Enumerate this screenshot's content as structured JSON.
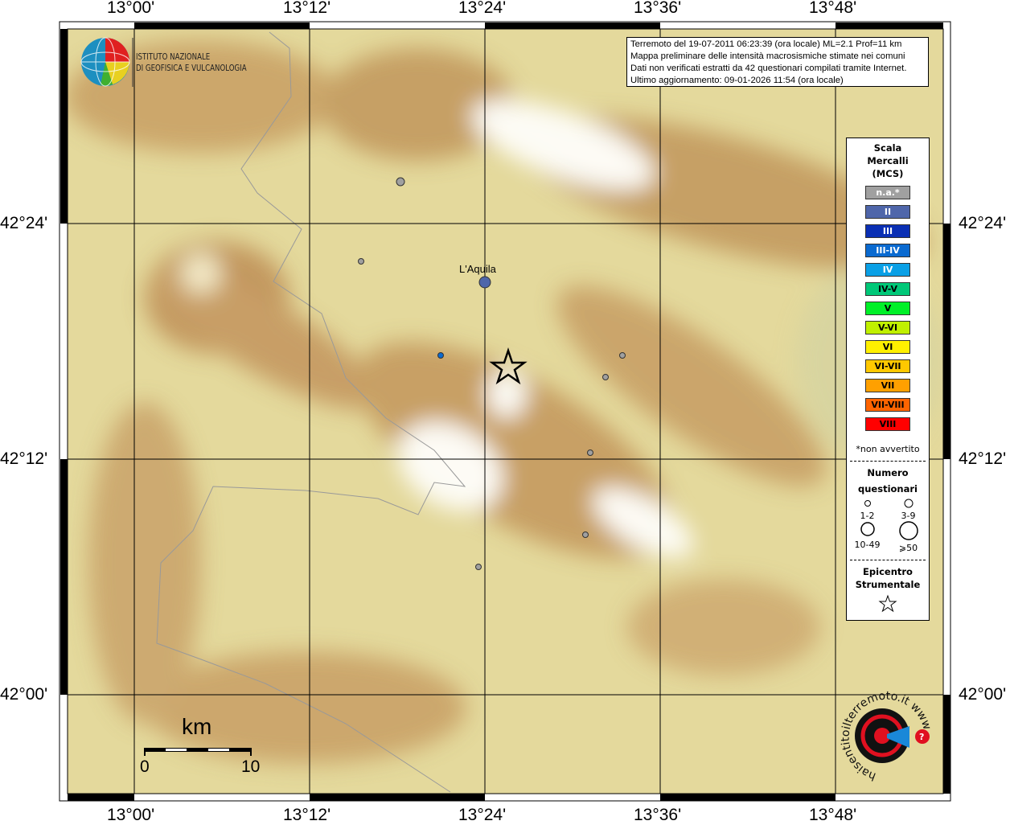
{
  "map": {
    "top_labels": [
      "13°00'",
      "13°12'",
      "13°24'",
      "13°36'",
      "13°48'"
    ],
    "bottom_labels": [
      "13°00'",
      "13°12'",
      "13°24'",
      "13°36'",
      "13°48'"
    ],
    "left_labels": [
      "42°24'",
      "42°12'",
      "42°00'"
    ],
    "right_labels": [
      "42°24'",
      "42°12'",
      "42°00'"
    ],
    "city": "L'Aquila",
    "scale": {
      "unit": "km",
      "start": "0",
      "end": "10"
    }
  },
  "info": {
    "line1": "Terremoto del 19-07-2011 06:23:39 (ora locale) ML=2.1 Prof=11 km",
    "line2": "Mappa preliminare delle intensità macrosismiche stimate nei comuni",
    "line3": "Dati non verificati estratti da 42 questionari compilati tramite Internet.",
    "line4": "Ultimo aggiornamento: 09-01-2026 11:54 (ora locale)"
  },
  "institute": {
    "line1": "ISTITUTO NAZIONALE",
    "line2": "DI GEOFISICA E VULCANOLOGIA"
  },
  "legend": {
    "title1": "Scala",
    "title2": "Mercalli",
    "title3": "(MCS)",
    "classes": [
      {
        "label": "n.a.*",
        "color": "#a0a0a0",
        "text": "#fff"
      },
      {
        "label": "II",
        "color": "#4f66aa",
        "text": "#fff"
      },
      {
        "label": "III",
        "color": "#0a2fb4",
        "text": "#fff"
      },
      {
        "label": "III-IV",
        "color": "#0a6ad0",
        "text": "#fff"
      },
      {
        "label": "IV",
        "color": "#0aa0e6",
        "text": "#fff"
      },
      {
        "label": "IV-V",
        "color": "#00c878",
        "text": "#000"
      },
      {
        "label": "V",
        "color": "#00f028",
        "text": "#000"
      },
      {
        "label": "V-VI",
        "color": "#c0f000",
        "text": "#000"
      },
      {
        "label": "VI",
        "color": "#fff000",
        "text": "#000"
      },
      {
        "label": "VI-VII",
        "color": "#ffc800",
        "text": "#000"
      },
      {
        "label": "VII",
        "color": "#ffa000",
        "text": "#000"
      },
      {
        "label": "VII-VIII",
        "color": "#ff6400",
        "text": "#000"
      },
      {
        "label": "VIII",
        "color": "#ff0000",
        "text": "#000"
      }
    ],
    "note": "*non avvertito",
    "count_title1": "Numero",
    "count_title2": "questionari",
    "sizes": [
      "1-2",
      "3-9",
      "10-49",
      "⩾50"
    ],
    "epi_title1": "Epicentro",
    "epi_title2": "Strumentale"
  },
  "points": [
    {
      "intensity": "n.a.",
      "color": "#a0a0a0"
    },
    {
      "intensity": "n.a.",
      "color": "#a0a0a0"
    },
    {
      "intensity": "II",
      "color": "#4f66aa"
    },
    {
      "intensity": "III-IV",
      "color": "#0a6ad0"
    },
    {
      "intensity": "n.a.",
      "color": "#a0a0a0"
    },
    {
      "intensity": "n.a.",
      "color": "#a0a0a0"
    },
    {
      "intensity": "n.a.",
      "color": "#a0a0a0"
    },
    {
      "intensity": "n.a.",
      "color": "#a0a0a0"
    },
    {
      "intensity": "n.a.",
      "color": "#a0a0a0"
    }
  ],
  "logo2": "haisentitoilterremoto.it www"
}
